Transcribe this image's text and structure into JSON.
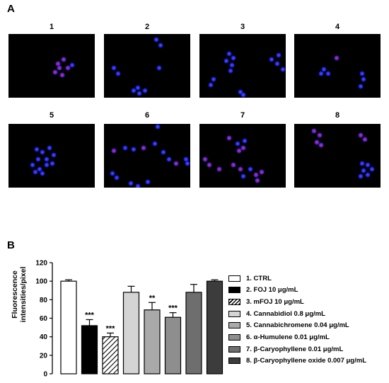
{
  "panel_a_label": "A",
  "panel_b_label": "B",
  "micrographs": [
    {
      "label": "1",
      "cells": [
        [
          70,
          42,
          "p"
        ],
        [
          78,
          36,
          "p"
        ],
        [
          84,
          48,
          "p"
        ],
        [
          66,
          54,
          "p"
        ],
        [
          76,
          58,
          "p"
        ],
        [
          90,
          44,
          "b"
        ],
        [
          72,
          48,
          "p"
        ]
      ]
    },
    {
      "label": "2",
      "cells": [
        [
          74,
          8,
          "b"
        ],
        [
          80,
          16,
          "b"
        ],
        [
          14,
          48,
          "b"
        ],
        [
          20,
          56,
          "b"
        ],
        [
          78,
          48,
          "b"
        ],
        [
          42,
          80,
          "b"
        ],
        [
          50,
          84,
          "b"
        ],
        [
          58,
          80,
          "b"
        ],
        [
          48,
          76,
          "b"
        ]
      ]
    },
    {
      "label": "3",
      "cells": [
        [
          42,
          28,
          "b"
        ],
        [
          48,
          34,
          "b"
        ],
        [
          38,
          38,
          "b"
        ],
        [
          46,
          44,
          "b"
        ],
        [
          44,
          52,
          "b"
        ],
        [
          102,
          36,
          "b"
        ],
        [
          110,
          42,
          "b"
        ],
        [
          118,
          50,
          "b"
        ],
        [
          112,
          30,
          "b"
        ],
        [
          16,
          72,
          "b"
        ],
        [
          20,
          64,
          "b"
        ],
        [
          58,
          82,
          "b"
        ],
        [
          62,
          86,
          "b"
        ]
      ]
    },
    {
      "label": "4",
      "cells": [
        [
          60,
          34,
          "p"
        ],
        [
          42,
          50,
          "b"
        ],
        [
          38,
          56,
          "b"
        ],
        [
          48,
          56,
          "b"
        ],
        [
          96,
          56,
          "b"
        ],
        [
          98,
          64,
          "b"
        ],
        [
          94,
          74,
          "b"
        ]
      ]
    },
    {
      "label": "5",
      "cells": [
        [
          40,
          36,
          "b"
        ],
        [
          48,
          40,
          "b"
        ],
        [
          58,
          34,
          "b"
        ],
        [
          64,
          44,
          "b"
        ],
        [
          54,
          50,
          "b"
        ],
        [
          42,
          50,
          "b"
        ],
        [
          34,
          58,
          "b"
        ],
        [
          44,
          64,
          "b"
        ],
        [
          54,
          58,
          "b"
        ],
        [
          38,
          68,
          "b"
        ],
        [
          48,
          70,
          "b"
        ],
        [
          62,
          56,
          "b"
        ]
      ]
    },
    {
      "label": "6",
      "cells": [
        [
          14,
          38,
          "p"
        ],
        [
          30,
          34,
          "b"
        ],
        [
          42,
          36,
          "b"
        ],
        [
          56,
          34,
          "p"
        ],
        [
          72,
          28,
          "b"
        ],
        [
          76,
          4,
          "b"
        ],
        [
          12,
          70,
          "b"
        ],
        [
          18,
          76,
          "b"
        ],
        [
          38,
          84,
          "b"
        ],
        [
          48,
          88,
          "b"
        ],
        [
          62,
          82,
          "b"
        ],
        [
          84,
          40,
          "b"
        ],
        [
          92,
          50,
          "b"
        ],
        [
          102,
          56,
          "p"
        ],
        [
          116,
          50,
          "b"
        ],
        [
          118,
          56,
          "b"
        ]
      ]
    },
    {
      "label": "7",
      "cells": [
        [
          42,
          20,
          "p"
        ],
        [
          54,
          28,
          "b"
        ],
        [
          62,
          34,
          "p"
        ],
        [
          56,
          38,
          "p"
        ],
        [
          64,
          24,
          "b"
        ],
        [
          8,
          50,
          "p"
        ],
        [
          14,
          58,
          "p"
        ],
        [
          28,
          64,
          "p"
        ],
        [
          48,
          58,
          "p"
        ],
        [
          58,
          64,
          "p"
        ],
        [
          72,
          64,
          "b"
        ],
        [
          80,
          72,
          "p"
        ],
        [
          88,
          68,
          "p"
        ],
        [
          82,
          80,
          "p"
        ],
        [
          62,
          74,
          "b"
        ]
      ]
    },
    {
      "label": "8",
      "cells": [
        [
          28,
          10,
          "p"
        ],
        [
          36,
          16,
          "p"
        ],
        [
          32,
          26,
          "p"
        ],
        [
          38,
          30,
          "p"
        ],
        [
          94,
          16,
          "p"
        ],
        [
          100,
          22,
          "p"
        ],
        [
          96,
          56,
          "b"
        ],
        [
          104,
          58,
          "b"
        ],
        [
          110,
          64,
          "b"
        ],
        [
          98,
          66,
          "b"
        ],
        [
          104,
          72,
          "b"
        ],
        [
          94,
          74,
          "b"
        ]
      ]
    }
  ],
  "chart_data": {
    "type": "bar",
    "ylabel": "Fluorescence intensities/pixel",
    "ylabel_lines": [
      "Fluorescence",
      "intensities/pixel"
    ],
    "ylim": [
      0,
      120
    ],
    "yticks": [
      0,
      20,
      40,
      60,
      80,
      100,
      120
    ],
    "categories": [
      "1",
      "2",
      "3",
      "4",
      "5",
      "6",
      "7",
      "8"
    ],
    "values": [
      100,
      52,
      40,
      88,
      69,
      61,
      88,
      100
    ],
    "errors": [
      1.5,
      6.5,
      4,
      6.5,
      8,
      5,
      8.5,
      1.5
    ],
    "significance": [
      "",
      "***",
      "***",
      "",
      "**",
      "***",
      "",
      ""
    ],
    "series_labels": [
      "1. CTRL",
      "2. FOJ 10 μg/mL",
      "3. mFOJ 10 μg/mL",
      "4. Cannabidiol 0.8 μg/mL",
      "5. Cannabichromene 0.04 μg/mL",
      "6. α-Humulene 0.01 μg/mL",
      "7. β-Caryophyllene 0.01 μg/mL",
      "8. β-Caryophyllene oxide 0.007 μg/mL"
    ],
    "fills": [
      "#ffffff",
      "#000000",
      "hatch",
      "#d4d4d4",
      "#a9a9a9",
      "#8e8e8e",
      "#6e6e6e",
      "#3c3c3c"
    ],
    "grid": false,
    "legend_position": "right"
  }
}
